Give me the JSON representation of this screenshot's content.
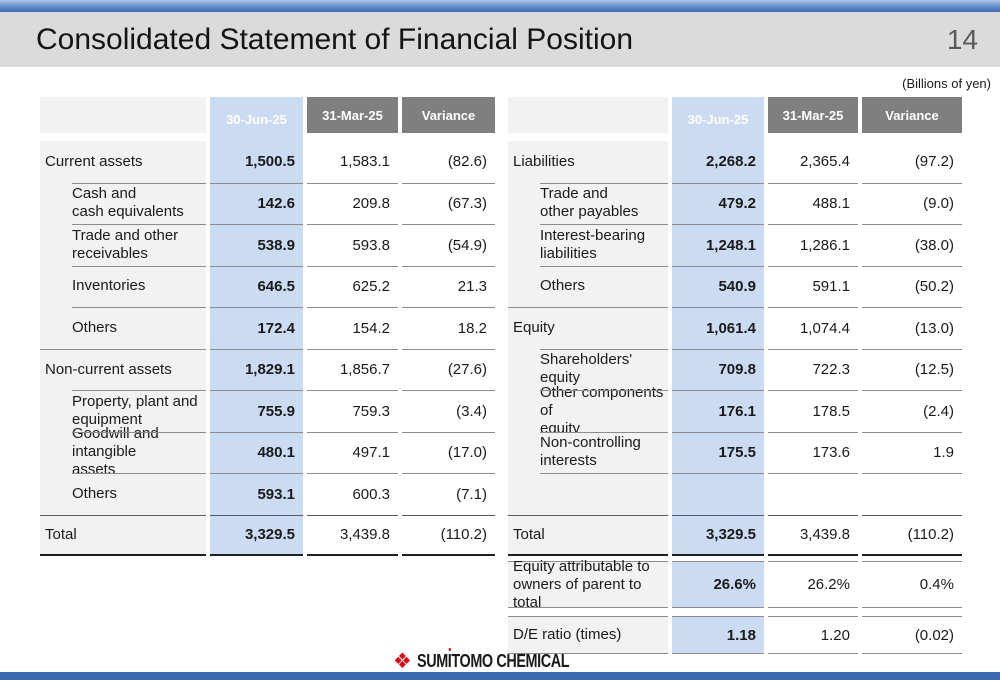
{
  "page": {
    "title": "Consolidated Statement of Financial Position",
    "page_number": "14",
    "units_note": "(Billions of yen)"
  },
  "columns": [
    "30-Jun-25",
    "31-Mar-25",
    "Variance"
  ],
  "left_table": {
    "rows": [
      {
        "label": "Current assets",
        "indent": false,
        "total": false,
        "values": [
          "1,500.5",
          "1,583.1",
          "(82.6)"
        ]
      },
      {
        "label": "Cash and\ncash equivalents",
        "indent": true,
        "total": false,
        "values": [
          "142.6",
          "209.8",
          "(67.3)"
        ]
      },
      {
        "label": "Trade and other\nreceivables",
        "indent": true,
        "total": false,
        "values": [
          "538.9",
          "593.8",
          "(54.9)"
        ]
      },
      {
        "label": "Inventories",
        "indent": true,
        "total": false,
        "values": [
          "646.5",
          "625.2",
          "21.3"
        ]
      },
      {
        "label": "Others",
        "indent": true,
        "total": false,
        "values": [
          "172.4",
          "154.2",
          "18.2"
        ]
      },
      {
        "label": "Non-current assets",
        "indent": false,
        "total": false,
        "values": [
          "1,829.1",
          "1,856.7",
          "(27.6)"
        ]
      },
      {
        "label": "Property, plant and\nequipment",
        "indent": true,
        "total": false,
        "values": [
          "755.9",
          "759.3",
          "(3.4)"
        ]
      },
      {
        "label": "Goodwill and intangible\nassets",
        "indent": true,
        "total": false,
        "values": [
          "480.1",
          "497.1",
          "(17.0)"
        ]
      },
      {
        "label": "Others",
        "indent": true,
        "total": false,
        "values": [
          "593.1",
          "600.3",
          "(7.1)"
        ]
      },
      {
        "label": "Total",
        "indent": false,
        "total": true,
        "values": [
          "3,329.5",
          "3,439.8",
          "(110.2)"
        ]
      }
    ]
  },
  "right_table": {
    "rows": [
      {
        "label": "Liabilities",
        "indent": false,
        "total": false,
        "values": [
          "2,268.2",
          "2,365.4",
          "(97.2)"
        ]
      },
      {
        "label": "Trade and\nother payables",
        "indent": true,
        "total": false,
        "values": [
          "479.2",
          "488.1",
          "(9.0)"
        ]
      },
      {
        "label": "Interest-bearing\nliabilities",
        "indent": true,
        "total": false,
        "values": [
          "1,248.1",
          "1,286.1",
          "(38.0)"
        ]
      },
      {
        "label": "Others",
        "indent": true,
        "total": false,
        "values": [
          "540.9",
          "591.1",
          "(50.2)"
        ]
      },
      {
        "label": "Equity",
        "indent": false,
        "total": false,
        "values": [
          "1,061.4",
          "1,074.4",
          "(13.0)"
        ]
      },
      {
        "label": "Shareholders' equity",
        "indent": true,
        "total": false,
        "values": [
          "709.8",
          "722.3",
          "(12.5)"
        ]
      },
      {
        "label": "Other components of\nequity",
        "indent": true,
        "total": false,
        "values": [
          "176.1",
          "178.5",
          "(2.4)"
        ]
      },
      {
        "label": "Non-controlling\ninterests",
        "indent": true,
        "total": false,
        "values": [
          "175.5",
          "173.6",
          "1.9"
        ]
      },
      {
        "label": "",
        "indent": true,
        "total": false,
        "values": [
          "",
          "",
          ""
        ]
      },
      {
        "label": "Total",
        "indent": false,
        "total": true,
        "values": [
          "3,329.5",
          "3,439.8",
          "(110.2)"
        ]
      }
    ],
    "extra_rows": [
      {
        "label": "Equity attributable to\nowners of parent to total",
        "values": [
          "26.6%",
          "26.2%",
          "0.4%"
        ]
      },
      {
        "label": "D/E ratio (times)",
        "values": [
          "1.18",
          "1.20",
          "(0.02)"
        ]
      }
    ]
  },
  "footer": {
    "logo_glyph": "❖",
    "wordmark_parts": {
      "p1": "SUM",
      "i": "I",
      "p2": "TOMO CHEMICAL"
    }
  },
  "colors": {
    "header_blue": "#1F4E79",
    "header_gray": "#7F7F7F",
    "highlight_column_blue": "#CBDCF2",
    "label_column_gray": "#F2F2F2",
    "accent_bar_blue": "#3A6AB1",
    "logo_red": "#E60012"
  }
}
